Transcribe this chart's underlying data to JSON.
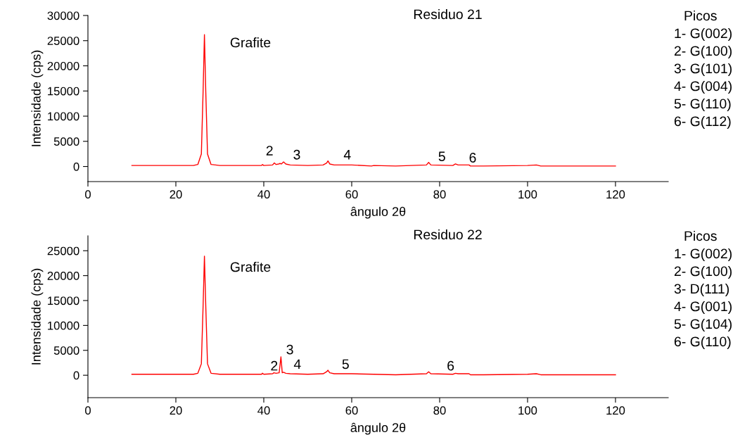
{
  "chart_data": [
    {
      "type": "line",
      "title": "Residuo 21",
      "xlabel": "ângulo 2θ",
      "ylabel": "Intensidade (cps)",
      "xlim": [
        0,
        132
      ],
      "xticks": [
        0,
        20,
        40,
        60,
        80,
        100,
        120
      ],
      "ylim": [
        -3000,
        30000
      ],
      "yticks": [
        0,
        5000,
        10000,
        15000,
        20000,
        25000,
        30000
      ],
      "grid": false,
      "marker": "none",
      "line_style": "solid",
      "series": [
        {
          "color": "#ff0000",
          "x": [
            10,
            15,
            20,
            24,
            25,
            25.8,
            26.2,
            26.5,
            26.8,
            27.2,
            28,
            30,
            35,
            39.5,
            39.7,
            40,
            42,
            42.4,
            42.8,
            43.4,
            43.7,
            44,
            44.5,
            45,
            46,
            50,
            53.5,
            54.3,
            54.6,
            55,
            56,
            60,
            64.5,
            65,
            70,
            77,
            77.5,
            78,
            83,
            83.6,
            84.2,
            86.7,
            87,
            90,
            100,
            102,
            103,
            110,
            120
          ],
          "values": [
            200,
            200,
            200,
            200,
            400,
            2500,
            15000,
            26200,
            15000,
            2500,
            400,
            200,
            200,
            200,
            400,
            200,
            300,
            700,
            400,
            500,
            600,
            500,
            900,
            500,
            300,
            200,
            300,
            700,
            1100,
            500,
            300,
            300,
            100,
            200,
            100,
            300,
            800,
            300,
            200,
            500,
            300,
            300,
            100,
            100,
            200,
            300,
            100,
            100,
            100
          ]
        }
      ],
      "annotations": [
        "Grafite",
        "2",
        "3",
        "4",
        "5",
        "6",
        "Picos",
        "1- G(002)",
        "2- G(100)",
        "3- G(101)",
        "4- G(004)",
        "5- G(110)",
        "6- G(112)"
      ]
    },
    {
      "type": "line",
      "title": "Residuo 22",
      "xlabel": "ângulo 2θ",
      "ylabel": "Intensidade (cps)",
      "xlim": [
        0,
        132
      ],
      "xticks": [
        0,
        20,
        40,
        60,
        80,
        100,
        120
      ],
      "ylim": [
        -4500,
        28000
      ],
      "yticks": [
        0,
        5000,
        10000,
        15000,
        20000,
        25000
      ],
      "grid": false,
      "marker": "none",
      "line_style": "solid",
      "series": [
        {
          "color": "#ff0000",
          "x": [
            10,
            15,
            20,
            24,
            25,
            25.8,
            26.2,
            26.5,
            26.8,
            27.2,
            28,
            30,
            35,
            39.5,
            39.7,
            40,
            42,
            42.3,
            42.8,
            43.5,
            43.9,
            44.2,
            44.5,
            45,
            46,
            50,
            53.5,
            54.3,
            54.6,
            55,
            56,
            60,
            65,
            70,
            77,
            77.5,
            78,
            83,
            83.6,
            84.2,
            86.7,
            87,
            90,
            100,
            102,
            103,
            110,
            120
          ],
          "values": [
            200,
            200,
            200,
            200,
            400,
            2300,
            14000,
            23900,
            14000,
            2300,
            400,
            200,
            200,
            200,
            400,
            200,
            300,
            500,
            400,
            500,
            3700,
            500,
            600,
            400,
            300,
            200,
            300,
            700,
            1000,
            500,
            300,
            300,
            200,
            100,
            300,
            700,
            300,
            200,
            400,
            300,
            300,
            100,
            100,
            200,
            300,
            100,
            100,
            100
          ]
        }
      ],
      "annotations": [
        "Grafite",
        "2",
        "3",
        "4",
        "5",
        "6",
        "Picos",
        "1- G(002)",
        "2- G(100)",
        "3- D(111)",
        "4- G(001)",
        "5- G(104)",
        "6- G(110)"
      ]
    }
  ]
}
